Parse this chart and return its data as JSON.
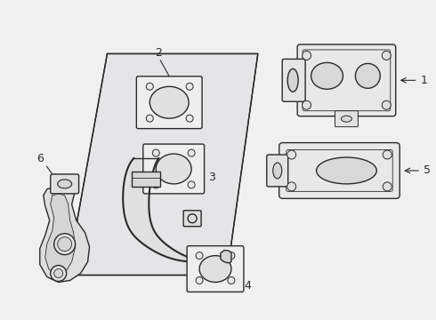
{
  "bg_color": "#f0f0f0",
  "line_color": "#2a2a2a",
  "fill_color": "#e8e8e8",
  "figsize": [
    4.9,
    3.6
  ],
  "dpi": 100
}
